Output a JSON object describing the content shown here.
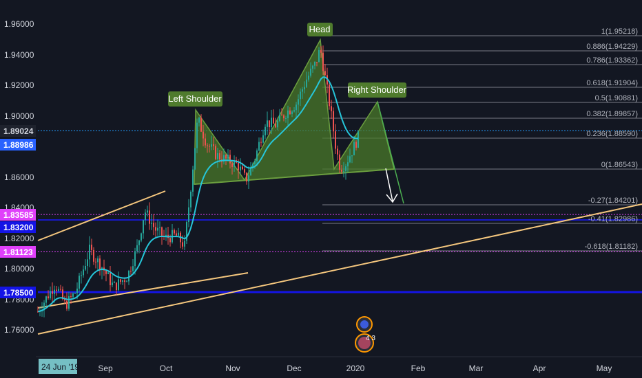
{
  "chart_data": {
    "type": "candlestick",
    "title": "",
    "xlabel": "",
    "ylabel": "",
    "ylim": [
      1.745,
      1.97
    ],
    "x_ticks": [
      "Sep",
      "Oct",
      "Nov",
      "Dec",
      "2020",
      "Feb",
      "Mar",
      "Apr",
      "May"
    ],
    "x_cursor_label": "24 Jun '19",
    "y_ticks": [
      "1.96000",
      "1.94000",
      "1.92000",
      "1.90000",
      "1.86000",
      "1.84000",
      "1.82000",
      "1.80000",
      "1.78000",
      "1.76000"
    ],
    "current_price": {
      "label": "1.89024",
      "value": 1.89024
    },
    "price_tags": [
      {
        "label": "1.88986",
        "value": 1.88986,
        "color": "#2962ff"
      },
      {
        "label": "1.83585",
        "value": 1.83585,
        "color": "#e040fb"
      },
      {
        "label": "1.83200",
        "value": 1.832,
        "color": "#1414e6"
      },
      {
        "label": "1.81123",
        "value": 1.81123,
        "color": "#e040fb"
      },
      {
        "label": "1.78500",
        "value": 1.785,
        "color": "#1414e6"
      }
    ],
    "fib_levels": [
      {
        "label": "1(1.95218)",
        "value": 1.95218
      },
      {
        "label": "0.886(1.94229)",
        "value": 1.94229
      },
      {
        "label": "0.786(1.93362)",
        "value": 1.93362
      },
      {
        "label": "0.618(1.91904)",
        "value": 1.91904
      },
      {
        "label": "0.5(1.90881)",
        "value": 1.90881
      },
      {
        "label": "0.382(1.89857)",
        "value": 1.89857
      },
      {
        "label": "0.236(1.88590)",
        "value": 1.8859
      },
      {
        "label": "0(1.86543)",
        "value": 1.86543
      },
      {
        "label": "-0.27(1.84201)",
        "value": 1.84201
      },
      {
        "label": "-0.41(1.82986)",
        "value": 1.82986
      },
      {
        "label": "-0.618(1.81182)",
        "value": 1.81182
      }
    ],
    "annotations": [
      "Left Shoulder",
      "Head",
      "Right Shoulder"
    ],
    "event_badge": "4 3",
    "colors": {
      "up": "#26a69a",
      "down": "#ef5350",
      "ma": "#26c6da",
      "trendline": "#f5c77e",
      "pattern": "#6b9e3f"
    }
  }
}
